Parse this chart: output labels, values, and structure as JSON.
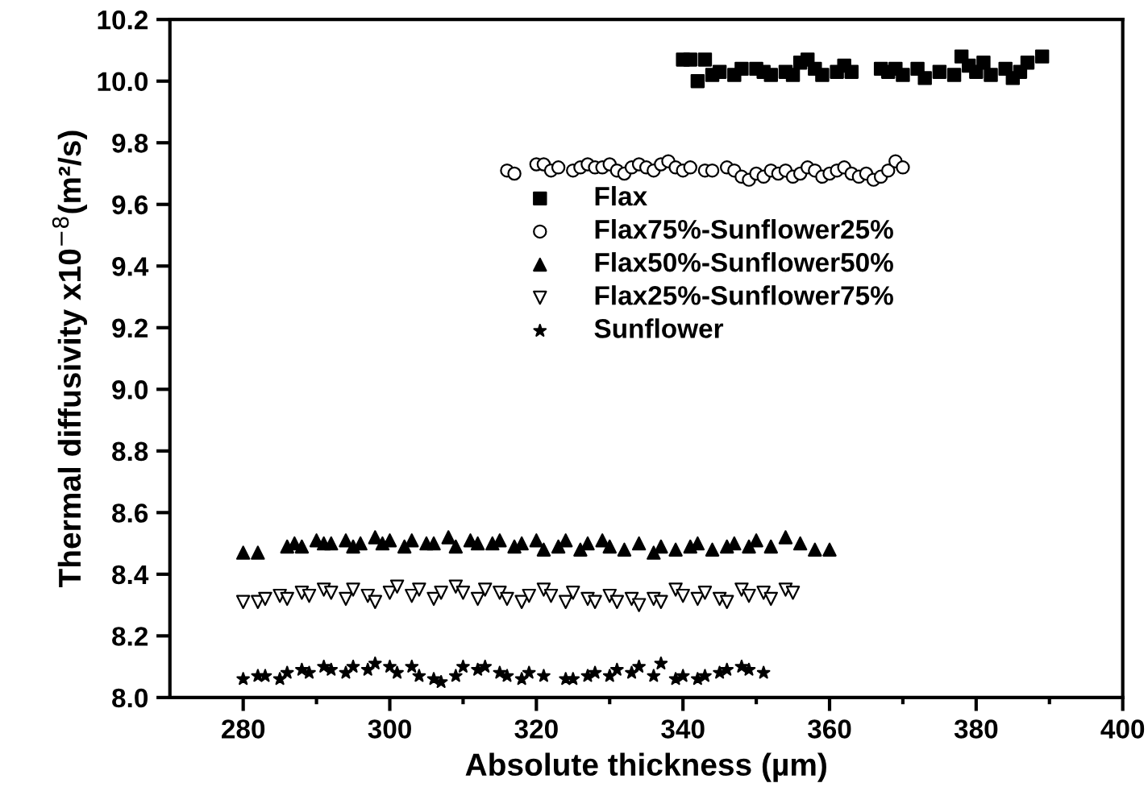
{
  "chart_data": {
    "type": "scatter",
    "xlabel": "Absolute thickness (µm)",
    "ylabel": "Thermal diffusivity x10$^{−8}$(m²/s)",
    "xlim": [
      270,
      400
    ],
    "ylim": [
      8.0,
      10.2
    ],
    "xticks": [
      280,
      {
        "value": 290,
        "label": null
      },
      300,
      {
        "value": 310,
        "label": null
      },
      320,
      {
        "value": 330,
        "label": null
      },
      340,
      {
        "value": 350,
        "label": null
      },
      360,
      {
        "value": 370,
        "label": null
      },
      380,
      {
        "value": 390,
        "label": null
      },
      400
    ],
    "yticks": [
      {
        "value": 8.0,
        "label": "8.0"
      },
      8.2,
      8.4,
      8.6,
      8.8,
      {
        "value": 9.0,
        "label": "9.0"
      },
      9.2,
      9.4,
      9.6,
      9.8,
      {
        "value": 10.0,
        "label": "10.0"
      },
      10.2
    ],
    "legend": "top",
    "grid": false,
    "series": [
      {
        "name": "Flax",
        "color": "#000000",
        "marker": "square",
        "x": [
          340,
          341,
          342,
          343,
          344,
          345,
          347,
          348,
          350,
          351,
          352,
          354,
          355,
          356,
          357,
          358,
          359,
          361,
          362,
          363,
          367,
          368,
          369,
          370,
          372,
          373,
          375,
          377,
          378,
          379,
          380,
          381,
          382,
          384,
          385,
          386,
          387,
          389
        ],
        "values": [
          10.07,
          10.07,
          10.0,
          10.07,
          10.02,
          10.03,
          10.02,
          10.04,
          10.04,
          10.03,
          10.02,
          10.03,
          10.02,
          10.06,
          10.07,
          10.04,
          10.02,
          10.03,
          10.05,
          10.03,
          10.04,
          10.03,
          10.04,
          10.02,
          10.04,
          10.01,
          10.03,
          10.02,
          10.08,
          10.05,
          10.03,
          10.06,
          10.02,
          10.04,
          10.01,
          10.03,
          10.06,
          10.08
        ]
      },
      {
        "name": "Flax75%-Sunflower25%",
        "color": "#000000",
        "marker": "circle",
        "x": [
          316,
          317,
          320,
          321,
          322,
          323,
          325,
          326,
          327,
          328,
          329,
          330,
          331,
          332,
          333,
          334,
          335,
          336,
          337,
          338,
          339,
          340,
          341,
          343,
          344,
          346,
          347,
          348,
          349,
          350,
          351,
          352,
          353,
          354,
          355,
          356,
          357,
          358,
          359,
          360,
          361,
          362,
          363,
          364,
          365,
          366,
          367,
          368,
          369,
          370
        ],
        "values": [
          9.71,
          9.7,
          9.73,
          9.73,
          9.71,
          9.72,
          9.71,
          9.72,
          9.73,
          9.72,
          9.72,
          9.73,
          9.71,
          9.7,
          9.72,
          9.73,
          9.72,
          9.71,
          9.73,
          9.74,
          9.72,
          9.71,
          9.72,
          9.71,
          9.71,
          9.72,
          9.71,
          9.69,
          9.68,
          9.7,
          9.69,
          9.71,
          9.7,
          9.71,
          9.69,
          9.7,
          9.72,
          9.71,
          9.69,
          9.7,
          9.71,
          9.72,
          9.7,
          9.69,
          9.7,
          9.68,
          9.69,
          9.71,
          9.74,
          9.72
        ]
      },
      {
        "name": "Flax50%-Sunflower50%",
        "color": "#000000",
        "marker": "triangle",
        "x": [
          280,
          282,
          286,
          287,
          288,
          290,
          291,
          292,
          294,
          295,
          296,
          298,
          299,
          300,
          302,
          303,
          305,
          306,
          308,
          309,
          311,
          312,
          314,
          315,
          317,
          318,
          320,
          321,
          323,
          324,
          326,
          327,
          329,
          330,
          332,
          334,
          336,
          337,
          339,
          341,
          342,
          344,
          346,
          347,
          349,
          350,
          352,
          354,
          356,
          358,
          360
        ],
        "values": [
          8.47,
          8.47,
          8.49,
          8.5,
          8.49,
          8.51,
          8.5,
          8.5,
          8.51,
          8.49,
          8.5,
          8.52,
          8.5,
          8.51,
          8.49,
          8.51,
          8.5,
          8.5,
          8.52,
          8.49,
          8.51,
          8.5,
          8.5,
          8.51,
          8.49,
          8.5,
          8.51,
          8.48,
          8.49,
          8.51,
          8.48,
          8.5,
          8.51,
          8.49,
          8.48,
          8.5,
          8.47,
          8.49,
          8.48,
          8.49,
          8.5,
          8.48,
          8.49,
          8.5,
          8.49,
          8.51,
          8.49,
          8.52,
          8.5,
          8.48,
          8.48
        ]
      },
      {
        "name": "Flax25%-Sunflower75%",
        "color": "#000000",
        "marker": "triangle_down",
        "x": [
          280,
          282,
          283,
          285,
          286,
          288,
          289,
          291,
          292,
          294,
          295,
          297,
          298,
          300,
          301,
          303,
          304,
          306,
          307,
          309,
          310,
          312,
          313,
          315,
          316,
          318,
          319,
          321,
          322,
          324,
          325,
          327,
          328,
          330,
          331,
          333,
          334,
          336,
          337,
          339,
          340,
          342,
          343,
          345,
          346,
          348,
          349,
          351,
          352,
          354,
          355
        ],
        "values": [
          8.31,
          8.31,
          8.32,
          8.33,
          8.32,
          8.34,
          8.33,
          8.35,
          8.34,
          8.32,
          8.35,
          8.33,
          8.31,
          8.34,
          8.36,
          8.33,
          8.35,
          8.32,
          8.34,
          8.36,
          8.34,
          8.32,
          8.35,
          8.34,
          8.32,
          8.31,
          8.33,
          8.35,
          8.33,
          8.31,
          8.34,
          8.32,
          8.31,
          8.33,
          8.31,
          8.32,
          8.3,
          8.32,
          8.31,
          8.35,
          8.33,
          8.32,
          8.34,
          8.32,
          8.31,
          8.35,
          8.33,
          8.34,
          8.32,
          8.35,
          8.34
        ]
      },
      {
        "name": "Sunflower",
        "color": "#000000",
        "marker": "star",
        "x": [
          280,
          282,
          283,
          285,
          286,
          288,
          289,
          291,
          292,
          294,
          295,
          297,
          298,
          300,
          301,
          303,
          304,
          306,
          307,
          309,
          310,
          312,
          313,
          315,
          316,
          318,
          319,
          321,
          324,
          325,
          327,
          328,
          330,
          331,
          333,
          334,
          336,
          337,
          339,
          340,
          342,
          343,
          345,
          346,
          348,
          349,
          351
        ],
        "values": [
          8.06,
          8.07,
          8.07,
          8.06,
          8.08,
          8.09,
          8.08,
          8.1,
          8.09,
          8.08,
          8.1,
          8.09,
          8.11,
          8.1,
          8.08,
          8.1,
          8.07,
          8.06,
          8.05,
          8.07,
          8.1,
          8.09,
          8.1,
          8.08,
          8.07,
          8.06,
          8.08,
          8.07,
          8.06,
          8.06,
          8.07,
          8.08,
          8.07,
          8.09,
          8.08,
          8.1,
          8.07,
          8.11,
          8.06,
          8.07,
          8.06,
          8.07,
          8.08,
          8.09,
          8.1,
          8.09,
          8.08
        ]
      }
    ]
  }
}
